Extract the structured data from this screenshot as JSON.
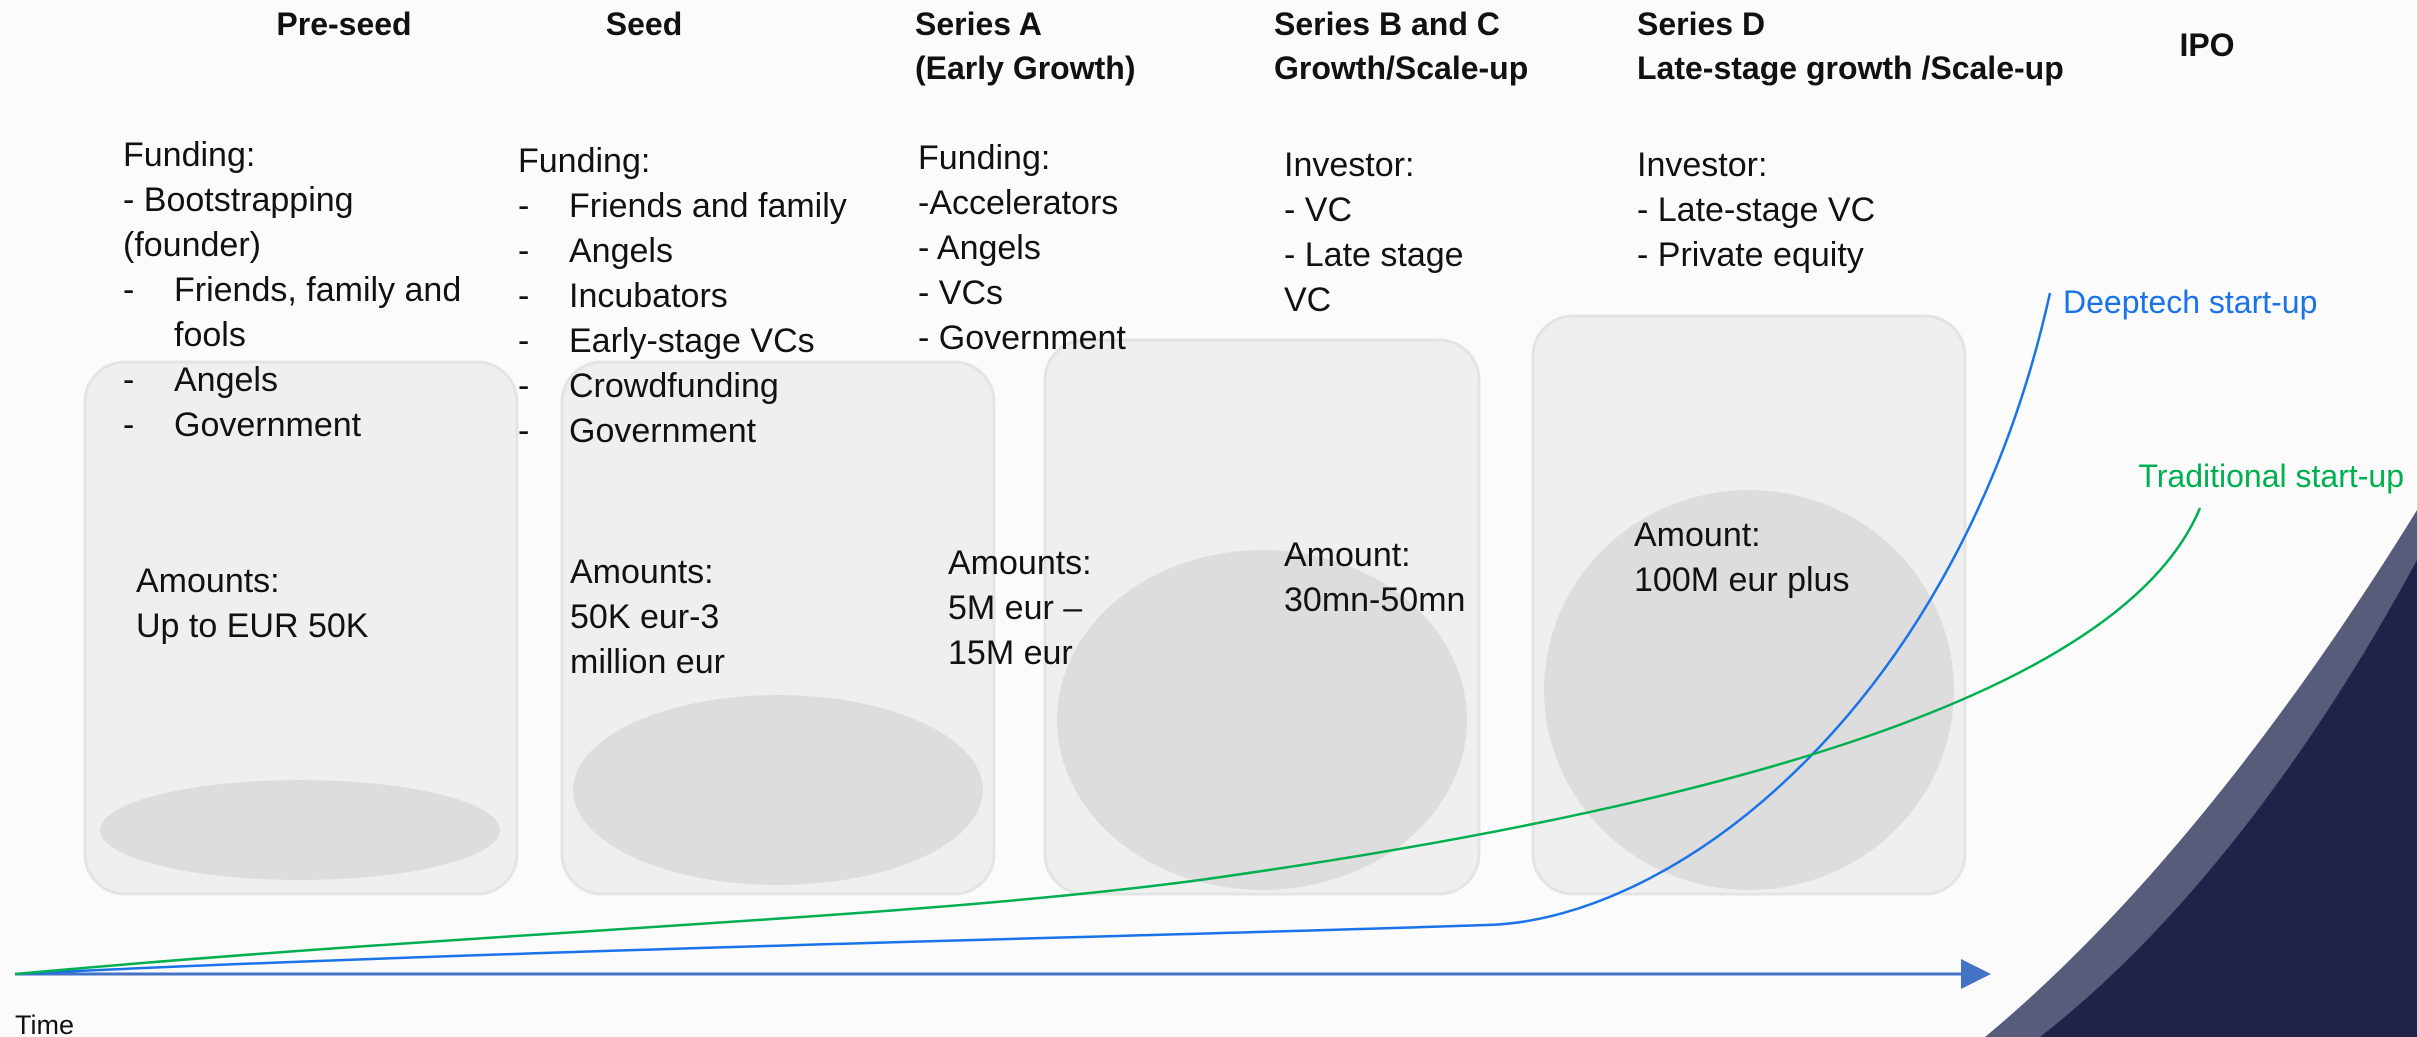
{
  "stages": [
    {
      "title": [
        "Pre-seed"
      ],
      "funding": {
        "heading": "Funding:",
        "items": [
          {
            "text": "- Bootstrapping"
          },
          {
            "text": "(founder)"
          },
          {
            "bullet": "-",
            "text": "Friends, family and fools"
          },
          {
            "bullet": "-",
            "text": "Angels"
          },
          {
            "bullet": "-",
            "text": "Government"
          }
        ]
      },
      "amount": [
        "Amounts:",
        "Up to EUR 50K"
      ]
    },
    {
      "title": [
        "Seed"
      ],
      "funding": {
        "heading": "Funding:",
        "items": [
          {
            "bullet": "-",
            "text": "Friends and family"
          },
          {
            "bullet": "-",
            "text": "Angels"
          },
          {
            "bullet": "-",
            "text": "Incubators"
          },
          {
            "bullet": "-",
            "text": "Early-stage VCs"
          },
          {
            "bullet": "-",
            "text": "Crowdfunding"
          },
          {
            "bullet": "-",
            "text": "Government"
          }
        ]
      },
      "amount": [
        "Amounts:",
        "50K eur-3",
        "million eur"
      ]
    },
    {
      "title": [
        "Series A",
        "(Early Growth)"
      ],
      "funding": {
        "heading": "Funding:",
        "items": [
          {
            "text": "-Accelerators"
          },
          {
            "text": "- Angels"
          },
          {
            "text": "- VCs"
          },
          {
            "text": "- Government"
          }
        ]
      },
      "amount": [
        "Amounts:",
        "5M eur –",
        "15M eur"
      ]
    },
    {
      "title": [
        "Series B and C",
        "Growth/Scale-up"
      ],
      "funding": {
        "heading": "Investor:",
        "items": [
          {
            "text": "- VC"
          },
          {
            "text": "- Late stage"
          },
          {
            "text": "VC"
          }
        ]
      },
      "amount": [
        "Amount:",
        "30mn-50mn"
      ]
    },
    {
      "title": [
        "Series D",
        "Late-stage growth /Scale-up"
      ],
      "funding": {
        "heading": "Investor:",
        "items": [
          {
            "text": "- Late-stage VC"
          },
          {
            "text": "- Private equity"
          }
        ]
      },
      "amount": [
        "Amount:",
        "100M eur plus"
      ]
    },
    {
      "title": [
        "IPO"
      ]
    }
  ],
  "curves": [
    {
      "name": "Deeptech start-up",
      "color": "#1a73e8"
    },
    {
      "name": "Traditional start-up",
      "color": "#00b050"
    }
  ],
  "axis_label": "Time"
}
